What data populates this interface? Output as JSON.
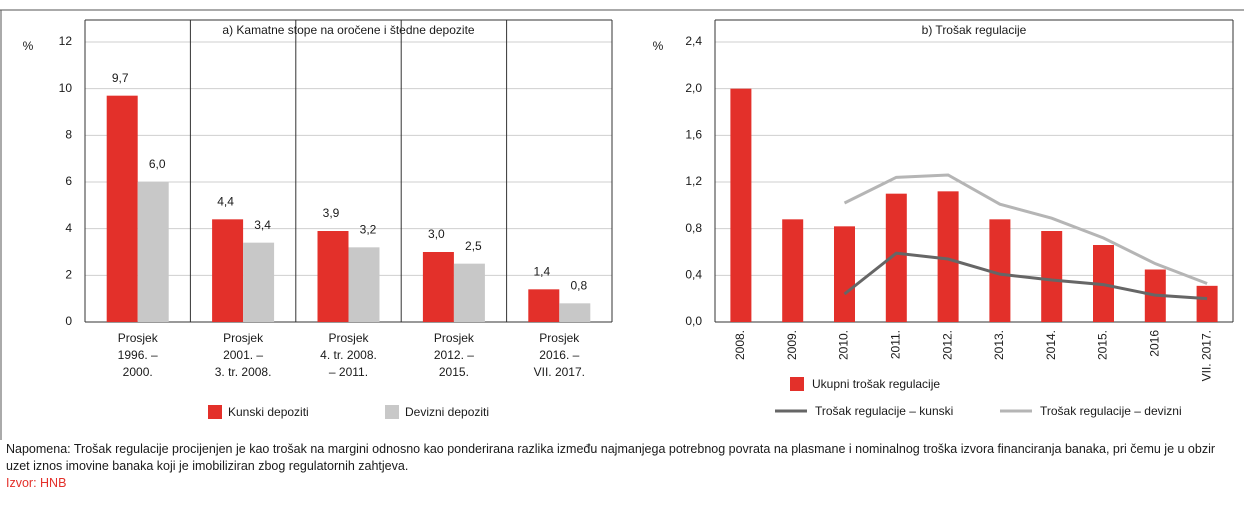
{
  "chart_data": [
    {
      "type": "bar",
      "title": "a) Kamatne stope na oročene i štedne depozite",
      "y_label": "%",
      "categories": [
        [
          "Prosjek",
          "1996. –",
          "2000."
        ],
        [
          "Prosjek",
          "2001. –",
          "3. tr. 2008."
        ],
        [
          "Prosjek",
          "4. tr. 2008.",
          "– 2011."
        ],
        [
          "Prosjek",
          "2012. –",
          "2015."
        ],
        [
          "Prosjek",
          "2016. –",
          "VII. 2017."
        ]
      ],
      "series": [
        {
          "name": "Kunski depoziti",
          "color": "#e3302a",
          "values": [
            9.7,
            4.4,
            3.9,
            3.0,
            1.4
          ],
          "value_labels": [
            "9,7",
            "4,4",
            "3,9",
            "3,0",
            "1,4"
          ]
        },
        {
          "name": "Devizni depoziti",
          "color": "#c8c8c8",
          "values": [
            6.0,
            3.4,
            3.2,
            2.5,
            0.8
          ],
          "value_labels": [
            "6,0",
            "3,4",
            "3,2",
            "2,5",
            "0,8"
          ]
        }
      ],
      "ylim": [
        0,
        12
      ],
      "yticks": [
        0,
        2,
        4,
        6,
        8,
        10,
        12
      ],
      "grid": true
    },
    {
      "type": "combo",
      "title": "b) Trošak regulacije",
      "y_label": "%",
      "categories": [
        "2008.",
        "2009.",
        "2010.",
        "2011.",
        "2012.",
        "2013.",
        "2014.",
        "2015.",
        "2016",
        "VII. 2017."
      ],
      "series": [
        {
          "name": "Ukupni trošak regulacije",
          "type": "bar",
          "color": "#e3302a",
          "values": [
            2.0,
            0.88,
            0.82,
            1.1,
            1.12,
            0.88,
            0.78,
            0.66,
            0.45,
            0.31
          ]
        },
        {
          "name": "Trošak regulacije – kunski",
          "type": "line",
          "color": "#666666",
          "values": [
            null,
            null,
            0.24,
            0.59,
            0.54,
            0.41,
            0.36,
            0.32,
            0.23,
            0.2
          ]
        },
        {
          "name": "Trošak regulacije – devizni",
          "type": "line",
          "color": "#b5b5b5",
          "values": [
            null,
            null,
            1.02,
            1.24,
            1.26,
            1.01,
            0.89,
            0.72,
            0.5,
            0.33
          ]
        }
      ],
      "ylim": [
        0,
        2.4
      ],
      "yticks": [
        {
          "value": 0,
          "label": "0,0"
        },
        {
          "value": 0.4,
          "label": "0,4"
        },
        {
          "value": 0.8,
          "label": "0,8"
        },
        {
          "value": 1.2,
          "label": "1,2"
        },
        {
          "value": 1.6,
          "label": "1,6"
        },
        {
          "value": 2.0,
          "label": "2,0"
        },
        {
          "value": 2.4,
          "label": "2,4"
        }
      ],
      "grid": true
    }
  ],
  "note": "Napomena: Trošak regulacije procijenjen je kao trošak na margini odnosno kao ponderirana razlika između najmanjega potrebnog povrata na plasmane i nominalnog troška izvora financiranja banaka, pri čemu je u obzir uzet iznos imovine banaka koji je imobiliziran zbog regulatornih zahtjeva.",
  "source": "Izvor: HNB"
}
